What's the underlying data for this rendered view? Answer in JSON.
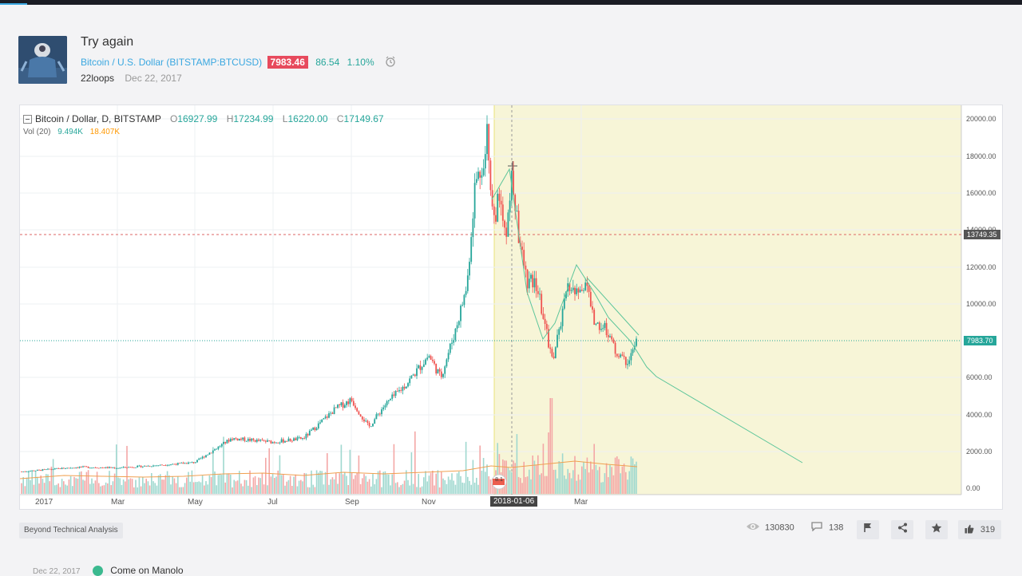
{
  "idea": {
    "title": "Try again",
    "symbol_name": "Bitcoin / U.S. Dollar",
    "symbol_code": "(BITSTAMP:BTCUSD)",
    "price": "7983.46",
    "change": "86.54",
    "change_pct": "1.10%",
    "author": "22loops",
    "date": "Dec 22, 2017"
  },
  "chart": {
    "legend_title": "Bitcoin / Dollar, D, BITSTAMP",
    "open_label": "O",
    "open": "16927.99",
    "high_label": "H",
    "high": "17234.99",
    "low_label": "L",
    "low": "16220.00",
    "close_label": "C",
    "close": "17149.67",
    "vol_label": "Vol (20)",
    "vol_value": "9.494K",
    "vol_ma": "18.407K",
    "crosshair_price": "13749.35",
    "last_price": "7983.70",
    "selected_date": "2018-01-06",
    "x_labels": [
      "2017",
      "Mar",
      "May",
      "Jul",
      "Sep",
      "Nov",
      "Mar"
    ],
    "y_labels": [
      "20000.00",
      "18000.00",
      "16000.00",
      "14000.00",
      "12000.00",
      "10000.00",
      "8000.00",
      "6000.00",
      "4000.00",
      "2000.00",
      "0.00"
    ],
    "colors": {
      "up": "#26a69a",
      "down": "#ef5350",
      "highlight": "#f7f5d7",
      "last_price": "#26a69a"
    }
  },
  "footer": {
    "tag": "Beyond Technical Analysis",
    "views": "130830",
    "comments": "138",
    "likes": "319"
  },
  "comment": {
    "date": "Dec 22, 2017",
    "author": "Come on Manolo"
  },
  "icons": [
    "alarm-clock-icon",
    "eye-icon",
    "comment-icon",
    "flag-icon",
    "share-icon",
    "star-icon",
    "thumb-up-icon"
  ]
}
